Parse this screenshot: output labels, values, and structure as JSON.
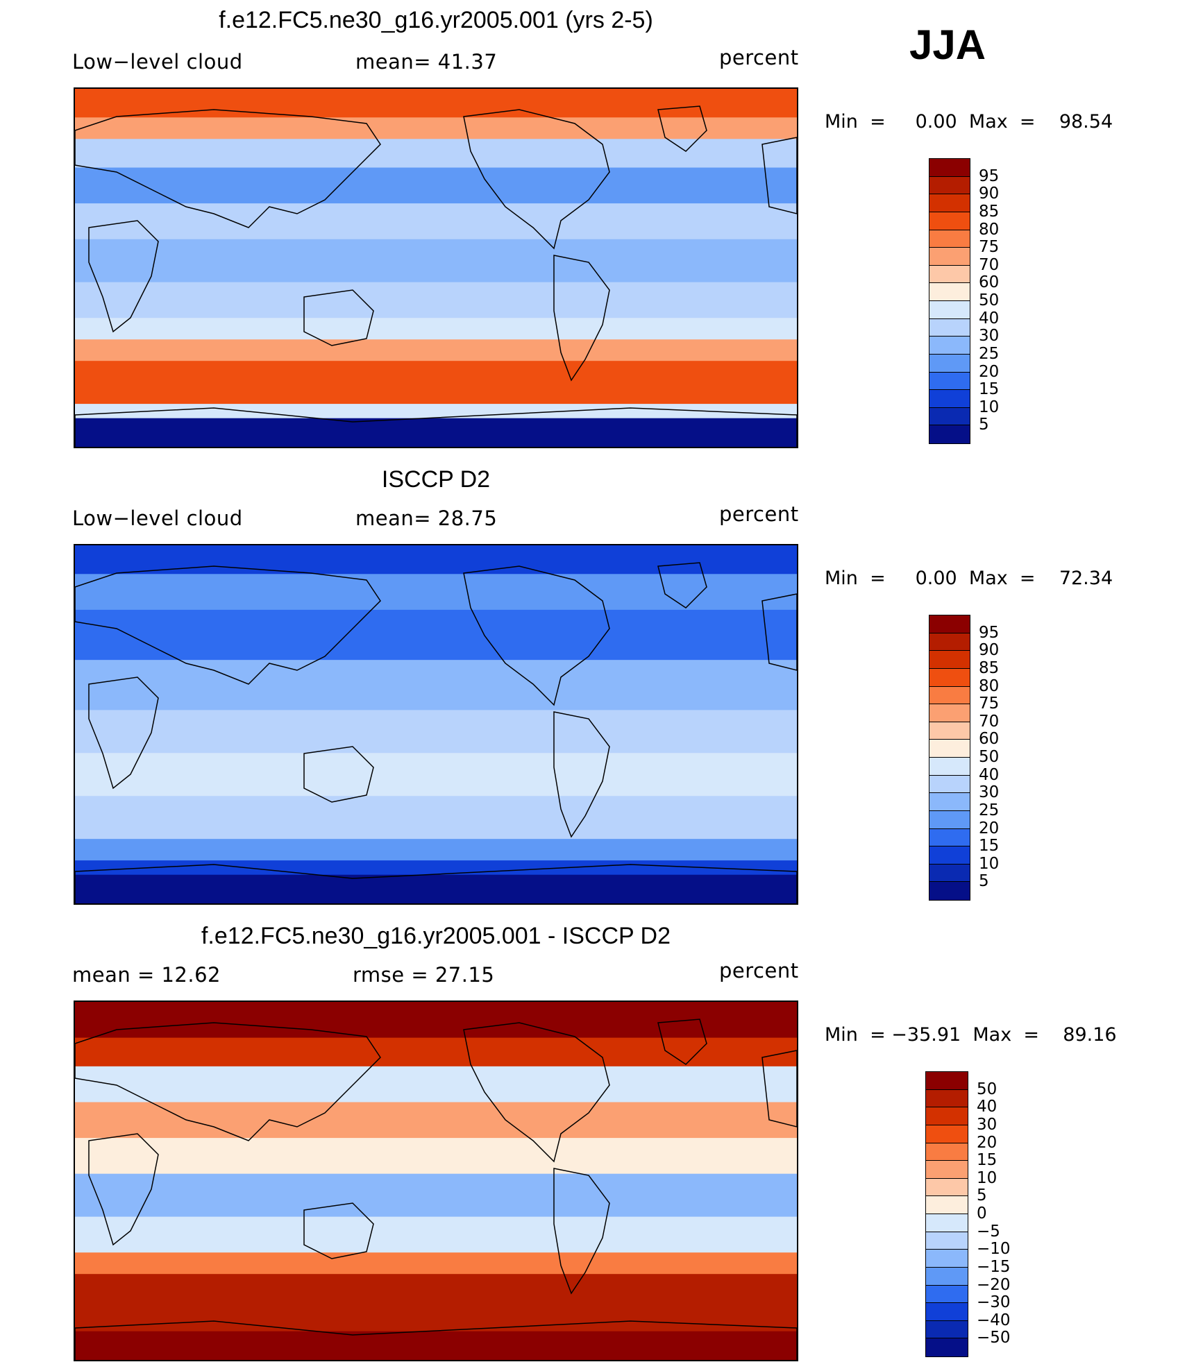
{
  "season": "JJA",
  "panels": [
    {
      "title": "f.e12.FC5.ne30_g16.yr2005.001 (yrs 2-5)",
      "left_label": "Low−level cloud",
      "center_label": "mean=   41.37",
      "right_label": "percent",
      "minmax": "Min  =     0.00  Max  =    98.54",
      "colorbar": {
        "ticks": [
          "95",
          "90",
          "85",
          "80",
          "75",
          "70",
          "60",
          "50",
          "40",
          "30",
          "25",
          "20",
          "15",
          "10",
          "5"
        ],
        "colors": [
          "#8b0000",
          "#b41d00",
          "#d33100",
          "#ef4f10",
          "#f97c42",
          "#fba072",
          "#fdc8a8",
          "#fdeedd",
          "#d6e8fb",
          "#b8d3fc",
          "#8bb8fb",
          "#5f99f6",
          "#2f6cf0",
          "#1040d8",
          "#0a2ab2",
          "#050f88"
        ]
      },
      "map_fill": [
        {
          "y": 0,
          "h": 8,
          "c": "#ef4f10"
        },
        {
          "y": 8,
          "h": 6,
          "c": "#fba072"
        },
        {
          "y": 14,
          "h": 8,
          "c": "#b8d3fc"
        },
        {
          "y": 22,
          "h": 10,
          "c": "#5f99f6"
        },
        {
          "y": 32,
          "h": 10,
          "c": "#b8d3fc"
        },
        {
          "y": 42,
          "h": 12,
          "c": "#8bb8fb"
        },
        {
          "y": 54,
          "h": 10,
          "c": "#b8d3fc"
        },
        {
          "y": 64,
          "h": 6,
          "c": "#d6e8fb"
        },
        {
          "y": 70,
          "h": 6,
          "c": "#fba072"
        },
        {
          "y": 76,
          "h": 12,
          "c": "#ef4f10"
        },
        {
          "y": 88,
          "h": 4,
          "c": "#d6e8fb"
        },
        {
          "y": 92,
          "h": 8,
          "c": "#050f88"
        }
      ]
    },
    {
      "title": "ISCCP D2",
      "left_label": "Low−level cloud",
      "center_label": "mean=   28.75",
      "right_label": "percent",
      "minmax": "Min  =     0.00  Max  =    72.34",
      "colorbar": {
        "ticks": [
          "95",
          "90",
          "85",
          "80",
          "75",
          "70",
          "60",
          "50",
          "40",
          "30",
          "25",
          "20",
          "15",
          "10",
          "5"
        ],
        "colors": [
          "#8b0000",
          "#b41d00",
          "#d33100",
          "#ef4f10",
          "#f97c42",
          "#fba072",
          "#fdc8a8",
          "#fdeedd",
          "#d6e8fb",
          "#b8d3fc",
          "#8bb8fb",
          "#5f99f6",
          "#2f6cf0",
          "#1040d8",
          "#0a2ab2",
          "#050f88"
        ]
      },
      "map_fill": [
        {
          "y": 0,
          "h": 8,
          "c": "#1040d8"
        },
        {
          "y": 8,
          "h": 10,
          "c": "#5f99f6"
        },
        {
          "y": 18,
          "h": 14,
          "c": "#2f6cf0"
        },
        {
          "y": 32,
          "h": 14,
          "c": "#8bb8fb"
        },
        {
          "y": 46,
          "h": 12,
          "c": "#b8d3fc"
        },
        {
          "y": 58,
          "h": 12,
          "c": "#d6e8fb"
        },
        {
          "y": 70,
          "h": 12,
          "c": "#b8d3fc"
        },
        {
          "y": 82,
          "h": 6,
          "c": "#5f99f6"
        },
        {
          "y": 88,
          "h": 4,
          "c": "#1040d8"
        },
        {
          "y": 92,
          "h": 8,
          "c": "#050f88"
        }
      ]
    },
    {
      "title": "f.e12.FC5.ne30_g16.yr2005.001 - ISCCP D2",
      "left_label": "mean  =     12.62",
      "center_label": "rmse  =     27.15",
      "right_label": "percent",
      "minmax": "Min  = −35.91  Max  =    89.16",
      "colorbar": {
        "ticks": [
          "50",
          "40",
          "30",
          "20",
          "15",
          "10",
          "5",
          "0",
          "−5",
          "−10",
          "−15",
          "−20",
          "−30",
          "−40",
          "−50"
        ],
        "colors": [
          "#8b0000",
          "#b41d00",
          "#d33100",
          "#ef4f10",
          "#f97c42",
          "#fba072",
          "#fdc8a8",
          "#fdeedd",
          "#d6e8fb",
          "#b8d3fc",
          "#8bb8fb",
          "#5f99f6",
          "#2f6cf0",
          "#1040d8",
          "#0a2ab2",
          "#050f88"
        ]
      },
      "map_fill": [
        {
          "y": 0,
          "h": 10,
          "c": "#8b0000"
        },
        {
          "y": 10,
          "h": 8,
          "c": "#d33100"
        },
        {
          "y": 18,
          "h": 10,
          "c": "#d6e8fb"
        },
        {
          "y": 28,
          "h": 10,
          "c": "#fba072"
        },
        {
          "y": 38,
          "h": 10,
          "c": "#fdeedd"
        },
        {
          "y": 48,
          "h": 12,
          "c": "#8bb8fb"
        },
        {
          "y": 60,
          "h": 10,
          "c": "#d6e8fb"
        },
        {
          "y": 70,
          "h": 6,
          "c": "#f97c42"
        },
        {
          "y": 76,
          "h": 16,
          "c": "#b41d00"
        },
        {
          "y": 92,
          "h": 8,
          "c": "#8b0000"
        }
      ]
    }
  ]
}
